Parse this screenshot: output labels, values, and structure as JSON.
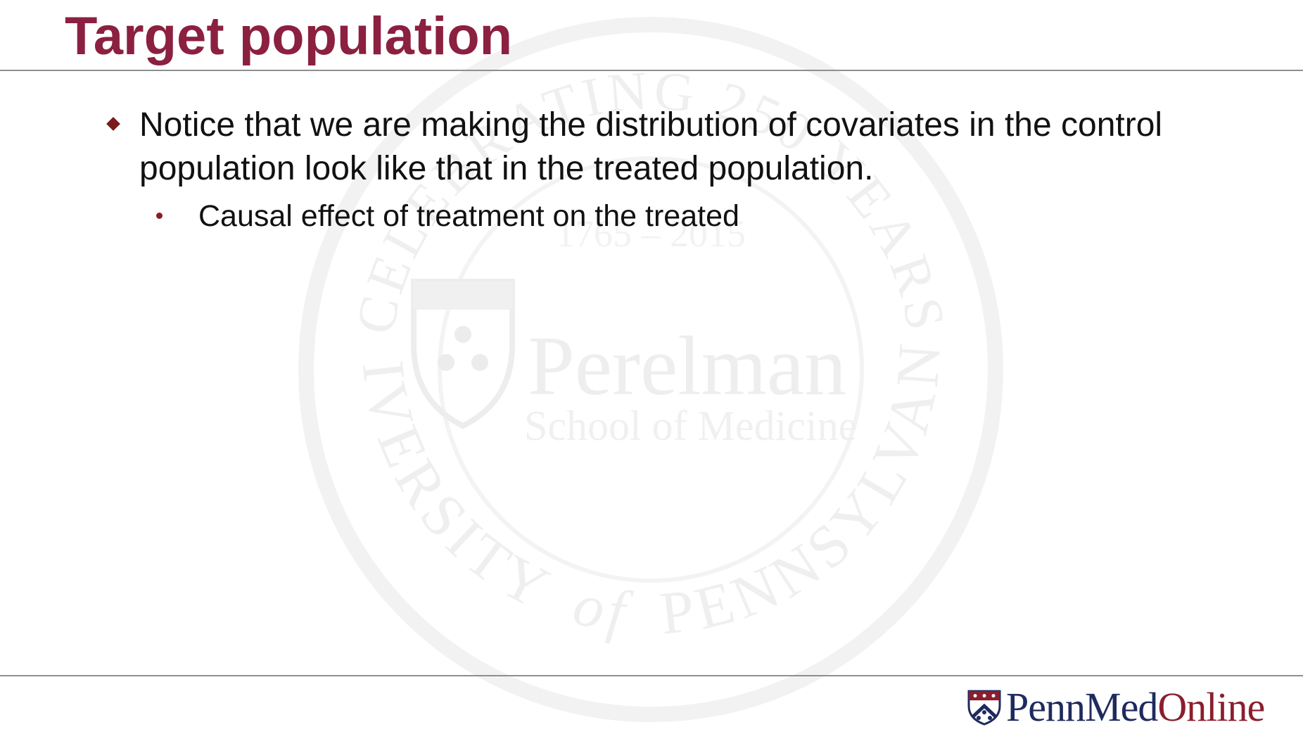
{
  "slide": {
    "title": "Target population",
    "bullets": [
      {
        "text": "Notice that we are making the distribution of covariates in the control population look like that in the treated population.",
        "sub_bullets": [
          "Causal effect of treatment on the treated"
        ]
      }
    ]
  },
  "watermark": {
    "icon": "perelman-seal-icon",
    "arc_top": "CELEBRATING 250 YEARS",
    "years": "1765 – 2015",
    "name": "Perelman",
    "subname": "School of Medicine",
    "arc_left": "UNIVERSITY",
    "arc_of": "of",
    "arc_right": "PENNSYLVANIA"
  },
  "footer": {
    "logo_part1": "Penn",
    "logo_part2": "Med",
    "logo_part3": "Online",
    "logo_icon": "penn-shield-icon"
  },
  "colors": {
    "title": "#8b2040",
    "rule": "#8f8f8f",
    "bullet_marker": "#7a1b1b",
    "logo_blue": "#1f2a5e",
    "logo_red": "#8b1e2e",
    "watermark": "#f1f1f1"
  }
}
